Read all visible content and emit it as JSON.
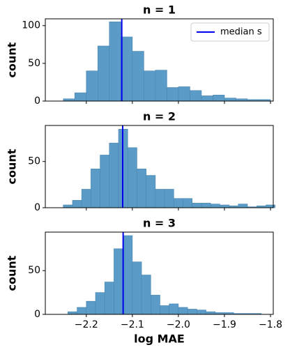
{
  "chart_data": [
    {
      "type": "histogram",
      "title": "n = 1",
      "ylabel": "count",
      "bins": [
        -2.25,
        -2.225,
        -2.2,
        -2.175,
        -2.15,
        -2.125,
        -2.1,
        -2.075,
        -2.05,
        -2.025,
        -2.0,
        -1.975,
        -1.95,
        -1.925,
        -1.9,
        -1.875,
        -1.85,
        -1.825,
        -1.8
      ],
      "values": [
        3,
        11,
        40,
        73,
        105,
        85,
        66,
        40,
        41,
        18,
        19,
        14,
        7,
        8,
        4,
        3,
        2,
        2
      ],
      "color": "#5b9bc8",
      "lines": [
        {
          "name": "median s",
          "x": -2.123,
          "color": "#0000ee"
        }
      ],
      "legend": "upper right",
      "xlim": [
        -2.289,
        -1.794
      ],
      "ylim": [
        0,
        109
      ],
      "xticks": [
        -2.2,
        -2.1,
        -2.0,
        -1.9,
        -1.8
      ],
      "yticks": [
        0,
        50,
        100
      ]
    },
    {
      "type": "histogram",
      "title": "n = 2",
      "ylabel": "count",
      "bins": [
        -2.25,
        -2.23,
        -2.21,
        -2.19,
        -2.17,
        -2.15,
        -2.13,
        -2.11,
        -2.09,
        -2.07,
        -2.05,
        -2.03,
        -2.01,
        -1.99,
        -1.97,
        -1.95,
        -1.93,
        -1.91,
        -1.89,
        -1.87,
        -1.85,
        -1.83,
        -1.81,
        -1.79
      ],
      "values": [
        3,
        8,
        20,
        42,
        57,
        70,
        85,
        65,
        42,
        35,
        20,
        20,
        10,
        10,
        5,
        5,
        4,
        3,
        2,
        4,
        1,
        2,
        3
      ],
      "color": "#5b9bc8",
      "lines": [
        {
          "x": -2.121,
          "color": "#0000ee"
        }
      ],
      "xlim": [
        -2.289,
        -1.794
      ],
      "ylim": [
        0,
        89
      ],
      "xticks": [
        -2.2,
        -2.1,
        -2.0,
        -1.9,
        -1.8
      ],
      "yticks": [
        0,
        50
      ]
    },
    {
      "type": "histogram",
      "title": "n = 3",
      "ylabel": "count",
      "xlabel": "log MAE",
      "bins": [
        -2.24,
        -2.22,
        -2.2,
        -2.18,
        -2.16,
        -2.14,
        -2.12,
        -2.1,
        -2.08,
        -2.06,
        -2.04,
        -2.02,
        -2.0,
        -1.98,
        -1.96,
        -1.94,
        -1.92,
        -1.9,
        -1.88,
        -1.86,
        -1.84,
        -1.82
      ],
      "values": [
        3,
        8,
        15,
        25,
        37,
        75,
        90,
        60,
        45,
        22,
        10,
        12,
        8,
        6,
        5,
        3,
        2,
        2,
        1,
        1,
        1
      ],
      "color": "#5b9bc8",
      "lines": [
        {
          "x": -2.12,
          "color": "#0000ee"
        }
      ],
      "xlim": [
        -2.289,
        -1.794
      ],
      "ylim": [
        0,
        94
      ],
      "xticks": [
        {
          "value": -2.2,
          "label": "−2.2"
        },
        {
          "value": -2.1,
          "label": "−2.1"
        },
        {
          "value": -2.0,
          "label": "−2.0"
        },
        {
          "value": -1.9,
          "label": "−1.9"
        },
        {
          "value": -1.8,
          "label": "−1.8"
        }
      ],
      "yticks": [
        0,
        50
      ]
    }
  ]
}
